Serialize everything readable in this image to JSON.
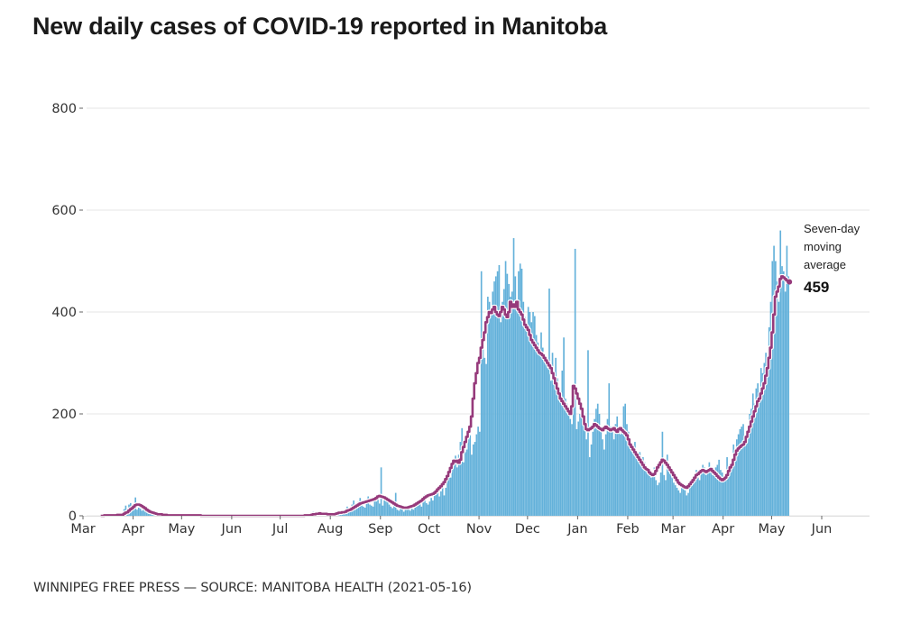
{
  "title": "New daily cases of COVID-19 reported in Manitoba",
  "footer": "WINNIPEG FREE PRESS — SOURCE: MANITOBA HEALTH (2021-05-16)",
  "colors": {
    "bars": "#63b1da",
    "line": "#963a7b",
    "line_halo": "#ffffff",
    "grid": "#e6e6e6",
    "text": "#333333"
  },
  "chart_data": {
    "type": "bar",
    "title": "New daily cases of COVID-19 reported in Manitoba",
    "xlabel": "",
    "ylabel": "",
    "ylim": [
      0,
      800
    ],
    "y_ticks": [
      0,
      200,
      400,
      600,
      800
    ],
    "grid": true,
    "x_start": "2020-03-01",
    "x_end": "2021-06-15",
    "x_ticks": [
      {
        "label": "Mar",
        "date": "2020-03-01"
      },
      {
        "label": "Apr",
        "date": "2020-04-01"
      },
      {
        "label": "May",
        "date": "2020-05-01"
      },
      {
        "label": "Jun",
        "date": "2020-06-01"
      },
      {
        "label": "Jul",
        "date": "2020-07-01"
      },
      {
        "label": "Aug",
        "date": "2020-08-01"
      },
      {
        "label": "Sep",
        "date": "2020-09-01"
      },
      {
        "label": "Oct",
        "date": "2020-10-01"
      },
      {
        "label": "Nov",
        "date": "2020-11-01"
      },
      {
        "label": "Dec",
        "date": "2020-12-01"
      },
      {
        "label": "Jan",
        "date": "2021-01-01"
      },
      {
        "label": "Feb",
        "date": "2021-02-01"
      },
      {
        "label": "Mar",
        "date": "2021-03-01"
      },
      {
        "label": "Apr",
        "date": "2021-04-01"
      },
      {
        "label": "May",
        "date": "2021-05-01"
      },
      {
        "label": "Jun",
        "date": "2021-06-01"
      }
    ],
    "annotation": {
      "label_lines": [
        "Seven-day",
        "moving",
        "average"
      ],
      "value": "459"
    },
    "series": [
      {
        "name": "Daily cases",
        "type": "bar",
        "start_date": "2020-03-12",
        "values": [
          1,
          0,
          3,
          0,
          0,
          2,
          1,
          0,
          3,
          2,
          1,
          4,
          0,
          3,
          13,
          20,
          8,
          22,
          25,
          17,
          24,
          36,
          12,
          16,
          14,
          10,
          12,
          8,
          6,
          4,
          6,
          3,
          5,
          2,
          4,
          1,
          2,
          3,
          1,
          1,
          2,
          0,
          1,
          0,
          2,
          0,
          1,
          1,
          0,
          0,
          1,
          2,
          0,
          1,
          0,
          0,
          1,
          0,
          0,
          1,
          0,
          0,
          0,
          0,
          1,
          0,
          0,
          0,
          0,
          1,
          0,
          0,
          0,
          0,
          0,
          1,
          0,
          0,
          0,
          0,
          0,
          0,
          0,
          1,
          0,
          0,
          0,
          0,
          0,
          0,
          0,
          0,
          0,
          1,
          0,
          0,
          0,
          0,
          0,
          0,
          0,
          0,
          0,
          0,
          0,
          1,
          0,
          0,
          0,
          0,
          0,
          0,
          0,
          0,
          2,
          0,
          0,
          1,
          0,
          0,
          0,
          1,
          0,
          0,
          0,
          0,
          2,
          1,
          0,
          3,
          5,
          8,
          4,
          2,
          3,
          6,
          2,
          5,
          4,
          3,
          2,
          1,
          4,
          3,
          6,
          2,
          8,
          10,
          5,
          7,
          4,
          12,
          18,
          8,
          15,
          22,
          30,
          12,
          14,
          28,
          35,
          20,
          18,
          16,
          25,
          38,
          22,
          20,
          18,
          30,
          28,
          35,
          24,
          95,
          20,
          30,
          38,
          28,
          22,
          18,
          15,
          30,
          45,
          12,
          10,
          14,
          20,
          8,
          12,
          15,
          18,
          10,
          14,
          12,
          16,
          20,
          22,
          25,
          18,
          30,
          42,
          25,
          22,
          28,
          35,
          30,
          40,
          45,
          52,
          38,
          48,
          62,
          40,
          55,
          70,
          85,
          75,
          90,
          110,
          118,
          95,
          120,
          145,
          172,
          105,
          125,
          130,
          150,
          158,
          120,
          140,
          145,
          160,
          175,
          165,
          480,
          350,
          310,
          298,
          430,
          420,
          395,
          440,
          460,
          470,
          480,
          492,
          380,
          420,
          445,
          500,
          475,
          455,
          430,
          440,
          545,
          470,
          410,
          480,
          495,
          485,
          420,
          390,
          370,
          410,
          400,
          380,
          400,
          392,
          355,
          340,
          320,
          360,
          330,
          310,
          300,
          290,
          446,
          265,
          320,
          280,
          310,
          270,
          250,
          240,
          285,
          350,
          230,
          220,
          210,
          190,
          180,
          240,
          524,
          170,
          185,
          200,
          210,
          195,
          180,
          150,
          325,
          115,
          140,
          165,
          190,
          210,
          220,
          200,
          170,
          150,
          130,
          160,
          190,
          260,
          175,
          165,
          150,
          180,
          195,
          175,
          160,
          170,
          215,
          220,
          180,
          165,
          150,
          140,
          130,
          145,
          120,
          110,
          125,
          100,
          115,
          105,
          95,
          90,
          85,
          75,
          80,
          95,
          70,
          60,
          65,
          85,
          165,
          80,
          70,
          120,
          100,
          85,
          75,
          65,
          60,
          55,
          50,
          45,
          60,
          55,
          50,
          40,
          45,
          55,
          60,
          70,
          80,
          90,
          75,
          70,
          85,
          100,
          95,
          80,
          90,
          105,
          85,
          80,
          90,
          95,
          100,
          110,
          90,
          85,
          75,
          80,
          115,
          90,
          85,
          100,
          140,
          130,
          150,
          160,
          170,
          175,
          180,
          150,
          160,
          175,
          200,
          210,
          240,
          220,
          250,
          260,
          240,
          290,
          280,
          300,
          320,
          285,
          370,
          420,
          500,
          530,
          500,
          460,
          420,
          560,
          490,
          480,
          440,
          530,
          470
        ]
      },
      {
        "name": "Seven-day moving average",
        "type": "line",
        "start_date": "2020-03-12",
        "values": [
          0,
          0,
          1,
          1,
          1,
          1,
          1,
          1,
          1,
          1,
          2,
          2,
          2,
          2,
          4,
          6,
          7,
          10,
          13,
          15,
          18,
          21,
          22,
          22,
          21,
          19,
          17,
          15,
          12,
          10,
          8,
          7,
          6,
          5,
          4,
          3,
          3,
          3,
          2,
          2,
          2,
          1,
          1,
          1,
          1,
          1,
          1,
          1,
          1,
          1,
          1,
          1,
          1,
          1,
          1,
          1,
          1,
          1,
          1,
          1,
          1,
          1,
          0,
          0,
          0,
          0,
          0,
          0,
          0,
          0,
          0,
          0,
          0,
          0,
          0,
          0,
          0,
          0,
          0,
          0,
          0,
          0,
          0,
          0,
          0,
          0,
          0,
          0,
          0,
          0,
          0,
          0,
          0,
          0,
          0,
          0,
          0,
          0,
          0,
          0,
          0,
          0,
          0,
          0,
          0,
          0,
          0,
          0,
          0,
          0,
          0,
          0,
          0,
          0,
          0,
          0,
          0,
          0,
          0,
          0,
          0,
          0,
          0,
          0,
          0,
          0,
          1,
          1,
          1,
          1,
          2,
          3,
          3,
          4,
          4,
          5,
          4,
          4,
          4,
          4,
          3,
          3,
          3,
          3,
          3,
          4,
          5,
          6,
          6,
          7,
          7,
          8,
          10,
          11,
          12,
          14,
          16,
          18,
          20,
          22,
          24,
          25,
          26,
          27,
          28,
          29,
          30,
          31,
          32,
          33,
          35,
          38,
          39,
          38,
          37,
          36,
          34,
          32,
          30,
          28,
          26,
          24,
          22,
          20,
          19,
          18,
          17,
          16,
          16,
          16,
          17,
          18,
          19,
          20,
          22,
          24,
          26,
          28,
          30,
          33,
          36,
          38,
          40,
          41,
          42,
          43,
          45,
          48,
          52,
          55,
          58,
          62,
          66,
          72,
          78,
          86,
          94,
          102,
          108,
          106,
          108,
          104,
          110,
          125,
          135,
          145,
          155,
          165,
          175,
          195,
          230,
          260,
          280,
          300,
          310,
          330,
          345,
          360,
          380,
          390,
          400,
          398,
          405,
          410,
          400,
          395,
          392,
          400,
          410,
          405,
          395,
          390,
          400,
          420,
          410,
          415,
          410,
          420,
          405,
          400,
          395,
          385,
          375,
          370,
          365,
          355,
          345,
          340,
          335,
          330,
          325,
          320,
          318,
          315,
          310,
          305,
          300,
          295,
          290,
          280,
          270,
          260,
          250,
          240,
          230,
          225,
          220,
          215,
          210,
          205,
          200,
          215,
          255,
          250,
          240,
          230,
          220,
          210,
          195,
          180,
          170,
          168,
          170,
          172,
          175,
          180,
          178,
          175,
          172,
          170,
          168,
          172,
          175,
          172,
          170,
          168,
          170,
          172,
          168,
          165,
          170,
          172,
          168,
          165,
          162,
          158,
          150,
          140,
          135,
          130,
          125,
          120,
          115,
          110,
          105,
          100,
          95,
          92,
          90,
          85,
          82,
          80,
          82,
          88,
          95,
          100,
          105,
          110,
          108,
          104,
          100,
          95,
          90,
          85,
          80,
          75,
          70,
          65,
          62,
          60,
          58,
          56,
          55,
          58,
          62,
          66,
          70,
          75,
          80,
          82,
          85,
          88,
          90,
          88,
          86,
          88,
          90,
          92,
          88,
          85,
          82,
          78,
          75,
          72,
          70,
          72,
          75,
          80,
          88,
          95,
          100,
          110,
          120,
          128,
          132,
          135,
          138,
          140,
          145,
          155,
          165,
          175,
          185,
          195,
          205,
          215,
          225,
          230,
          240,
          250,
          260,
          275,
          290,
          310,
          330,
          360,
          395,
          430,
          440,
          450,
          465,
          470,
          468,
          465,
          462,
          459
        ]
      }
    ]
  }
}
